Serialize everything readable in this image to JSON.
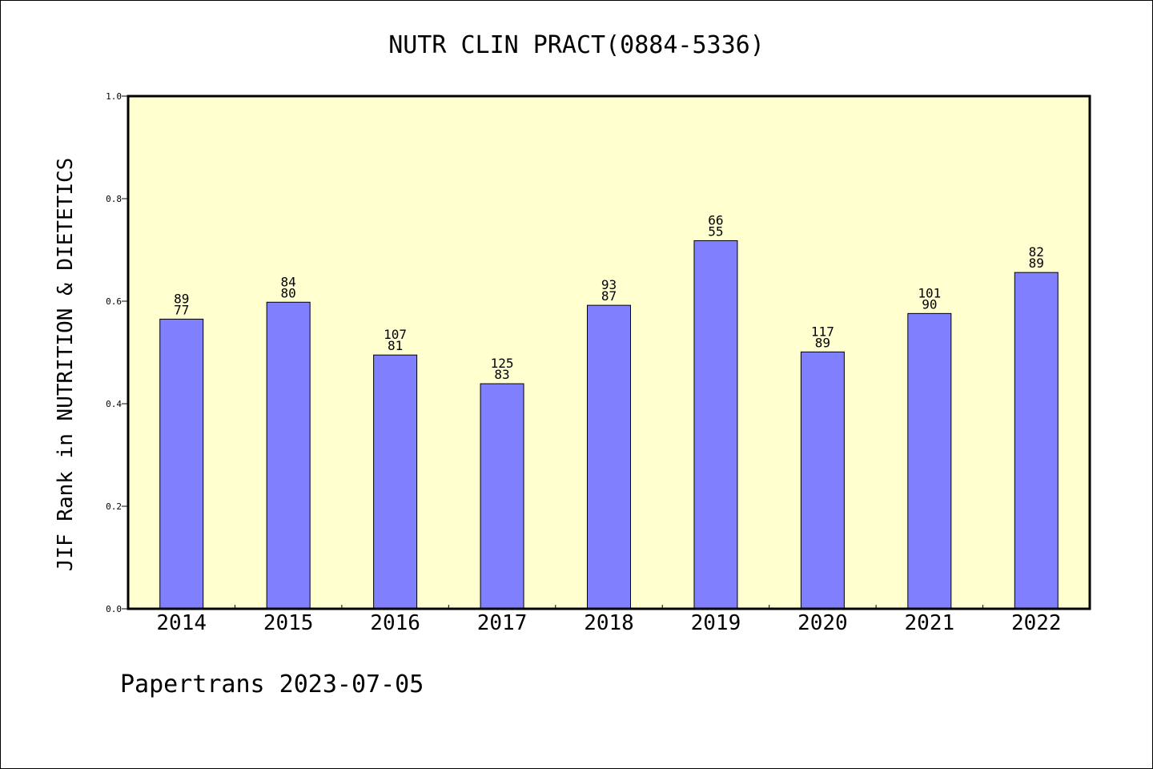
{
  "chart_data": {
    "type": "bar",
    "title": "NUTR CLIN PRACT(0884-5336)",
    "ylabel": "JIF Rank in NUTRITION & DIETETICS",
    "xlabel": "",
    "ylim": [
      0,
      1.0
    ],
    "yticks": [
      "0.0",
      "0.2",
      "0.4",
      "0.6",
      "0.8",
      "1.0"
    ],
    "categories": [
      "2014",
      "2015",
      "2016",
      "2017",
      "2018",
      "2019",
      "2020",
      "2021",
      "2022"
    ],
    "values": [
      0.565,
      0.598,
      0.495,
      0.439,
      0.592,
      0.718,
      0.501,
      0.576,
      0.656
    ],
    "annotations": [
      {
        "top": "89",
        "bottom": "77"
      },
      {
        "top": "84",
        "bottom": "80"
      },
      {
        "top": "107",
        "bottom": "81"
      },
      {
        "top": "125",
        "bottom": "83"
      },
      {
        "top": "93",
        "bottom": "87"
      },
      {
        "top": "66",
        "bottom": "55"
      },
      {
        "top": "117",
        "bottom": "89"
      },
      {
        "top": "101",
        "bottom": "90"
      },
      {
        "top": "82",
        "bottom": "89"
      }
    ],
    "grid": false,
    "plot_background": "#ffffd0",
    "bar_color": "#8080ff"
  },
  "footer": {
    "credit": "Papertrans 2023-07-05"
  }
}
